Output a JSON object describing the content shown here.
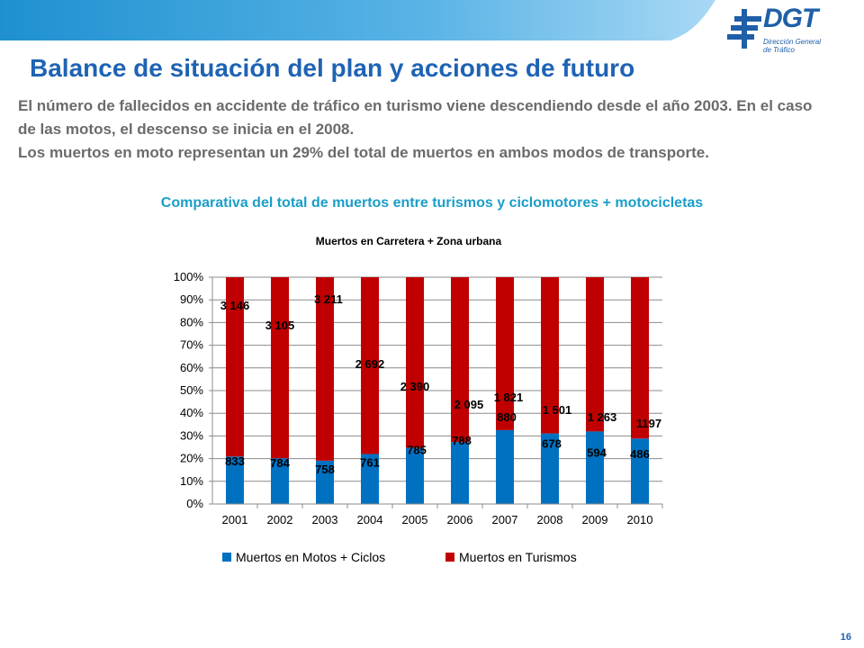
{
  "header": {
    "title": "Balance de situación del plan y acciones de futuro",
    "logo_text": "DGT",
    "logo_sub_1": "Dirección General",
    "logo_sub_2": "de Tráfico",
    "logo_icon": "dgt-logo-icon"
  },
  "body": {
    "paragraph_1": "El número de fallecidos en accidente de tráfico en turismo viene descendiendo desde el año 2003. En el caso de las motos, el descenso se inicia en el 2008.",
    "paragraph_2": "Los muertos en moto representan un 29% del total de muertos en ambos modos de transporte."
  },
  "section_title": "Comparativa del total de muertos entre turismos y ciclomotores + motocicletas",
  "page_number": "16",
  "colors": {
    "title_blue": "#1f63b4",
    "subtitle_cyan": "#1a9ec9",
    "moto_blue": "#0070c0",
    "car_red": "#c00000"
  },
  "chart_data": {
    "type": "bar",
    "stacked": "percent",
    "title": "Muertos en Carretera + Zona urbana",
    "categories": [
      "2001",
      "2002",
      "2003",
      "2004",
      "2005",
      "2006",
      "2007",
      "2008",
      "2009",
      "2010"
    ],
    "series": [
      {
        "name": "Muertos en Motos + Ciclos",
        "color": "#0070c0",
        "values": [
          833,
          784,
          758,
          761,
          785,
          788,
          880,
          678,
          594,
          486
        ],
        "labels": [
          "833",
          "784",
          "758",
          "761",
          "785",
          "788",
          "880",
          "678",
          "594",
          "486"
        ]
      },
      {
        "name": "Muertos en Turismos",
        "color": "#c00000",
        "values": [
          3146,
          3105,
          3211,
          2692,
          2390,
          2095,
          1821,
          1501,
          1263,
          1197
        ],
        "labels": [
          "3 146",
          "3 105",
          "3 211",
          "2 692",
          "2 390",
          "2 095",
          "1 821",
          "1 501",
          "1 263",
          "1197"
        ]
      }
    ],
    "y_ticks": [
      "0%",
      "10%",
      "20%",
      "30%",
      "40%",
      "50%",
      "60%",
      "70%",
      "80%",
      "90%",
      "100%"
    ],
    "ylim": [
      0,
      100
    ],
    "grid": true,
    "legend": "bottom"
  }
}
